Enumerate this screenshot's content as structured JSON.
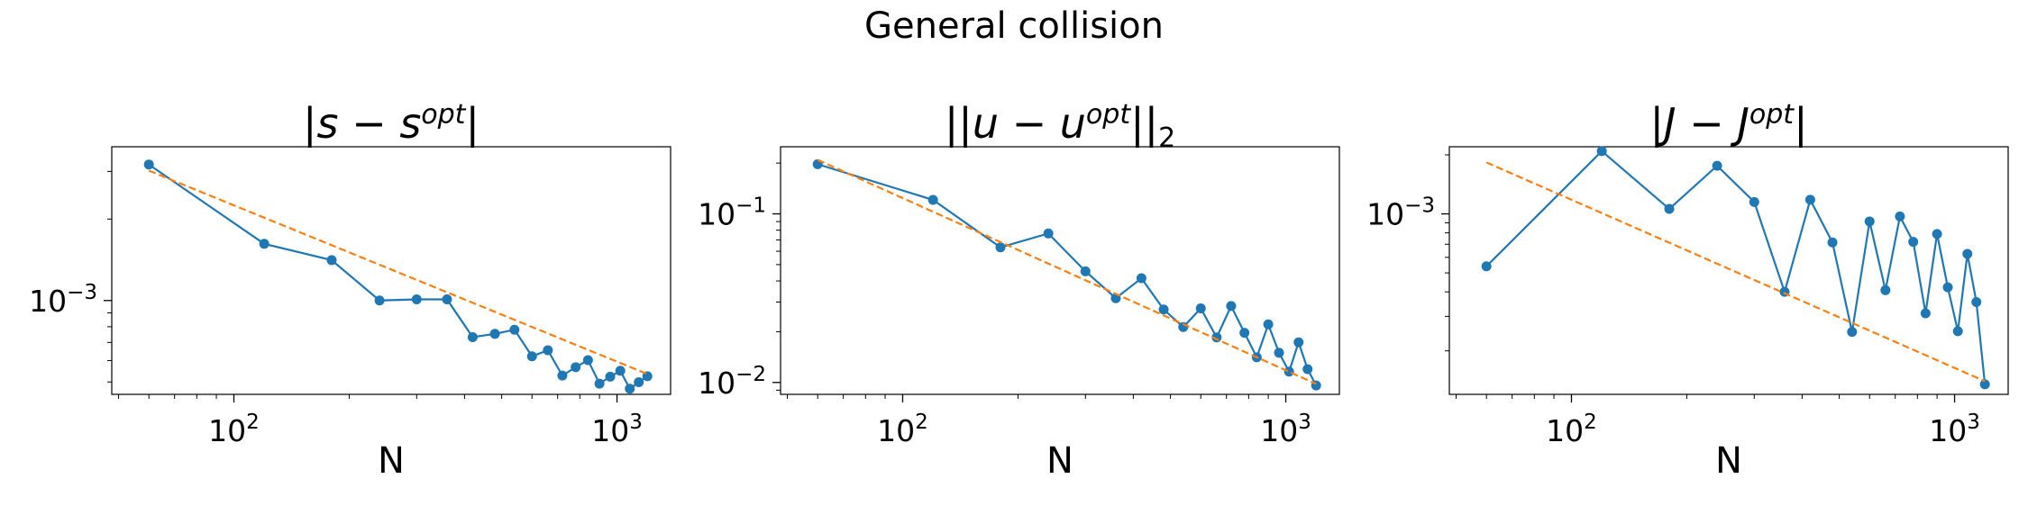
{
  "figure": {
    "suptitle": "General collision",
    "colors": {
      "series": "#1f77b4",
      "fit": "#ff7f0e"
    }
  },
  "chart_data": [
    {
      "type": "line",
      "title": "|s − s^opt|",
      "title_parts": {
        "pre": "|",
        "v1": "s",
        "mid": " − ",
        "v2": "s",
        "sup": "opt",
        "post": "|",
        "sub": ""
      },
      "xlabel": "N",
      "ylabel": "",
      "xscale": "log",
      "yscale": "log",
      "xlim": [
        48,
        1380
      ],
      "ylim": [
        0.00045,
        0.0037
      ],
      "xticks": [
        {
          "base": "10",
          "exp": "2",
          "value": 100
        },
        {
          "base": "10",
          "exp": "3",
          "value": 1000
        }
      ],
      "yticks": [
        {
          "base": "10",
          "exp": "−3",
          "value": 0.001
        }
      ],
      "grid": false,
      "series": [
        {
          "style": "line-markers",
          "color": "#1f77b4",
          "x": [
            60,
            120,
            180,
            240,
            300,
            360,
            420,
            480,
            540,
            600,
            660,
            720,
            780,
            840,
            900,
            960,
            1020,
            1080,
            1140,
            1200
          ],
          "y": [
            0.00318,
            0.00162,
            0.00141,
            0.001,
            0.00101,
            0.00101,
            0.000732,
            0.000753,
            0.00078,
            0.000622,
            0.000655,
            0.000528,
            0.000567,
            0.000602,
            0.000493,
            0.000523,
            0.00055,
            0.000472,
            0.000499,
            0.000525
          ]
        },
        {
          "style": "dashed",
          "color": "#ff7f0e",
          "x": [
            60,
            1200
          ],
          "y": [
            0.00302,
            0.000535
          ]
        }
      ]
    },
    {
      "type": "line",
      "title": "||u − u^opt||_2",
      "title_parts": {
        "pre": "||",
        "v1": "u",
        "mid": " − ",
        "v2": "u",
        "sup": "opt",
        "post": "||",
        "sub": "2"
      },
      "xlabel": "N",
      "ylabel": "",
      "xscale": "log",
      "yscale": "log",
      "xlim": [
        48,
        1380
      ],
      "ylim": [
        0.0085,
        0.25
      ],
      "xticks": [
        {
          "base": "10",
          "exp": "2",
          "value": 100
        },
        {
          "base": "10",
          "exp": "3",
          "value": 1000
        }
      ],
      "yticks": [
        {
          "base": "10",
          "exp": "−1",
          "value": 0.1
        },
        {
          "base": "10",
          "exp": "−2",
          "value": 0.01
        }
      ],
      "grid": false,
      "series": [
        {
          "style": "line-markers",
          "color": "#1f77b4",
          "x": [
            60,
            120,
            180,
            240,
            300,
            360,
            420,
            480,
            540,
            600,
            660,
            720,
            780,
            840,
            900,
            960,
            1020,
            1080,
            1140,
            1200
          ],
          "y": [
            0.197,
            0.121,
            0.0633,
            0.0765,
            0.0456,
            0.0316,
            0.0415,
            0.0271,
            0.0213,
            0.0275,
            0.0185,
            0.0284,
            0.0197,
            0.0141,
            0.0221,
            0.015,
            0.0116,
            0.0173,
            0.012,
            0.0096
          ]
        },
        {
          "style": "dashed",
          "color": "#ff7f0e",
          "x": [
            60,
            1200
          ],
          "y": [
            0.209,
            0.0098
          ]
        }
      ]
    },
    {
      "type": "line",
      "title": "|J − J^opt|",
      "title_parts": {
        "pre": "|",
        "v1": "J",
        "mid": " − ",
        "v2": "J",
        "sup": "opt",
        "post": "|",
        "sub": ""
      },
      "xlabel": "N",
      "ylabel": "",
      "xscale": "log",
      "yscale": "log",
      "xlim": [
        48,
        1380
      ],
      "ylim": [
        0.00012,
        0.0022
      ],
      "xticks": [
        {
          "base": "10",
          "exp": "2",
          "value": 100
        },
        {
          "base": "10",
          "exp": "3",
          "value": 1000
        }
      ],
      "yticks": [
        {
          "base": "10",
          "exp": "−3",
          "value": 0.001
        }
      ],
      "grid": false,
      "series": [
        {
          "style": "line-markers",
          "color": "#1f77b4",
          "x": [
            60,
            120,
            180,
            240,
            300,
            360,
            420,
            480,
            540,
            600,
            660,
            720,
            780,
            840,
            900,
            960,
            1020,
            1080,
            1140,
            1200
          ],
          "y": [
            0.00054,
            0.00209,
            0.00106,
            0.00176,
            0.00115,
            0.0004,
            0.00118,
            0.000715,
            0.00025,
            0.000915,
            0.000408,
            0.00097,
            0.00072,
            0.000311,
            0.00079,
            0.000422,
            0.000252,
            0.000625,
            0.000355,
            0.000135
          ]
        },
        {
          "style": "dashed",
          "color": "#ff7f0e",
          "x": [
            60,
            1200
          ],
          "y": [
            0.00183,
            0.00014
          ]
        }
      ]
    }
  ]
}
